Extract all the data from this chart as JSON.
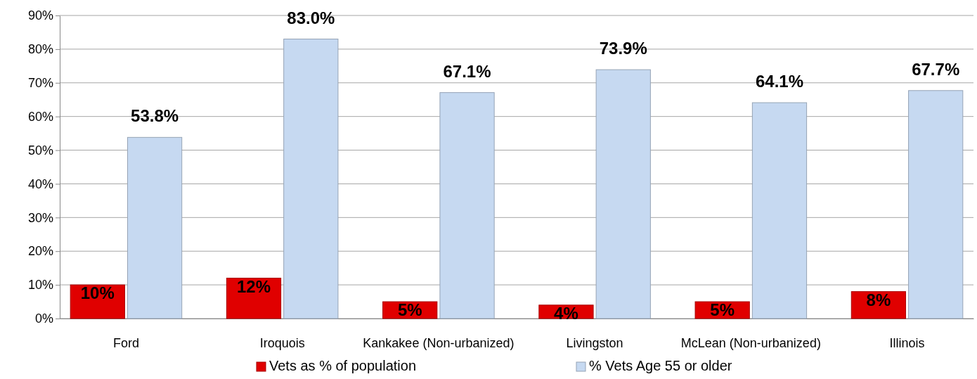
{
  "chart_data": {
    "type": "bar",
    "categories": [
      "Ford",
      "Iroquois",
      "Kankakee (Non-urbanized)",
      "Livingston",
      "McLean (Non-urbanized)",
      "Illinois"
    ],
    "series": [
      {
        "name": "Vets as % of population",
        "color": "#e00000",
        "values": [
          10,
          12,
          5,
          4,
          5,
          8
        ],
        "value_labels": [
          "10%",
          "12%",
          "5%",
          "4%",
          "5%",
          "8%"
        ]
      },
      {
        "name": "% Vets Age 55 or older",
        "color": "#c6d9f1",
        "values": [
          53.8,
          83.0,
          67.1,
          73.9,
          64.1,
          67.7
        ],
        "value_labels": [
          "53.8%",
          "83.0%",
          "67.1%",
          "73.9%",
          "64.1%",
          "67.7%"
        ]
      }
    ],
    "ylim": [
      0,
      90
    ],
    "yticks": [
      {
        "value": 0,
        "label": "0%"
      },
      {
        "value": 10,
        "label": "10%"
      },
      {
        "value": 20,
        "label": "20%"
      },
      {
        "value": 30,
        "label": "30%"
      },
      {
        "value": 40,
        "label": "40%"
      },
      {
        "value": 50,
        "label": "50%"
      },
      {
        "value": 60,
        "label": "60%"
      },
      {
        "value": 70,
        "label": "70%"
      },
      {
        "value": 80,
        "label": "80%"
      },
      {
        "value": 90,
        "label": "90%"
      }
    ],
    "grid": "y",
    "legend": "bottom"
  }
}
